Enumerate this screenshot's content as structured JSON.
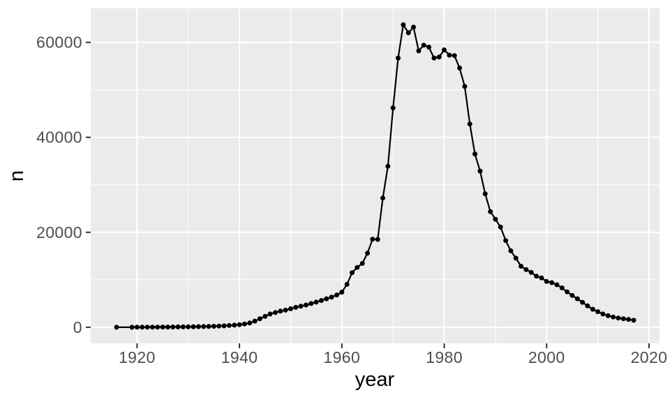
{
  "chart_data": {
    "type": "line",
    "title": "",
    "xlabel": "year",
    "ylabel": "n",
    "legend": "none",
    "grid": "major-and-minor",
    "panel_background": "#EBEBEB",
    "grid_color": "#FFFFFF",
    "point_color": "#000000",
    "line_color": "#000000",
    "axis_text_color": "#4D4D4D",
    "axis_title_color": "#000000",
    "xlim": [
      1910.95,
      2022.05
    ],
    "ylim": [
      -3390,
      67150
    ],
    "x_major_ticks": [
      1920,
      1940,
      1960,
      1980,
      2000,
      2020
    ],
    "x_minor_ticks": [
      1930,
      1950,
      1970,
      1990,
      2010
    ],
    "y_major_ticks": [
      0,
      20000,
      40000,
      60000
    ],
    "y_minor_ticks": [
      10000,
      30000,
      50000
    ],
    "series": [
      {
        "name": "n",
        "points": [
          [
            1916,
            5
          ],
          [
            1919,
            10
          ],
          [
            1920,
            20
          ],
          [
            1921,
            25
          ],
          [
            1922,
            30
          ],
          [
            1923,
            35
          ],
          [
            1924,
            40
          ],
          [
            1925,
            50
          ],
          [
            1926,
            55
          ],
          [
            1927,
            65
          ],
          [
            1928,
            75
          ],
          [
            1929,
            85
          ],
          [
            1930,
            100
          ],
          [
            1931,
            115
          ],
          [
            1932,
            135
          ],
          [
            1933,
            155
          ],
          [
            1934,
            180
          ],
          [
            1935,
            215
          ],
          [
            1936,
            255
          ],
          [
            1937,
            305
          ],
          [
            1938,
            370
          ],
          [
            1939,
            450
          ],
          [
            1940,
            550
          ],
          [
            1941,
            700
          ],
          [
            1942,
            900
          ],
          [
            1943,
            1300
          ],
          [
            1944,
            1800
          ],
          [
            1945,
            2300
          ],
          [
            1946,
            2800
          ],
          [
            1947,
            3100
          ],
          [
            1948,
            3400
          ],
          [
            1949,
            3600
          ],
          [
            1950,
            3900
          ],
          [
            1951,
            4200
          ],
          [
            1952,
            4450
          ],
          [
            1953,
            4700
          ],
          [
            1954,
            5000
          ],
          [
            1955,
            5300
          ],
          [
            1956,
            5650
          ],
          [
            1957,
            6000
          ],
          [
            1958,
            6350
          ],
          [
            1959,
            6800
          ],
          [
            1960,
            7400
          ],
          [
            1961,
            9050
          ],
          [
            1962,
            11500
          ],
          [
            1963,
            12600
          ],
          [
            1964,
            13450
          ],
          [
            1965,
            15600
          ],
          [
            1966,
            18550
          ],
          [
            1967,
            18500
          ],
          [
            1968,
            27200
          ],
          [
            1969,
            33900
          ],
          [
            1970,
            46200
          ],
          [
            1971,
            56700
          ],
          [
            1972,
            63700
          ],
          [
            1973,
            62000
          ],
          [
            1974,
            63200
          ],
          [
            1975,
            58200
          ],
          [
            1976,
            59400
          ],
          [
            1977,
            59000
          ],
          [
            1978,
            56700
          ],
          [
            1979,
            56900
          ],
          [
            1980,
            58400
          ],
          [
            1981,
            57300
          ],
          [
            1982,
            57200
          ],
          [
            1983,
            54600
          ],
          [
            1984,
            50700
          ],
          [
            1985,
            42800
          ],
          [
            1986,
            36500
          ],
          [
            1987,
            32900
          ],
          [
            1988,
            28100
          ],
          [
            1989,
            24350
          ],
          [
            1990,
            22750
          ],
          [
            1991,
            21100
          ],
          [
            1992,
            18250
          ],
          [
            1993,
            16100
          ],
          [
            1994,
            14550
          ],
          [
            1995,
            12850
          ],
          [
            1996,
            12150
          ],
          [
            1997,
            11550
          ],
          [
            1998,
            10750
          ],
          [
            1999,
            10400
          ],
          [
            2000,
            9650
          ],
          [
            2001,
            9400
          ],
          [
            2002,
            8950
          ],
          [
            2003,
            8300
          ],
          [
            2004,
            7450
          ],
          [
            2005,
            6700
          ],
          [
            2006,
            6000
          ],
          [
            2007,
            5250
          ],
          [
            2008,
            4500
          ],
          [
            2009,
            3800
          ],
          [
            2010,
            3280
          ],
          [
            2011,
            2800
          ],
          [
            2012,
            2450
          ],
          [
            2013,
            2160
          ],
          [
            2014,
            1950
          ],
          [
            2015,
            1800
          ],
          [
            2016,
            1660
          ],
          [
            2017,
            1470
          ]
        ]
      }
    ]
  }
}
